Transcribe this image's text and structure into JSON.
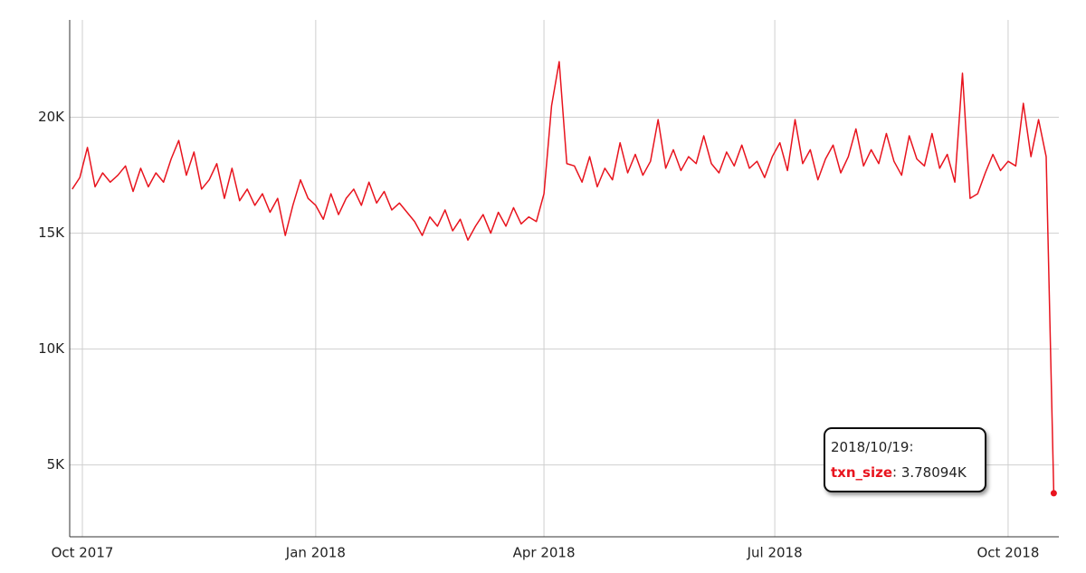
{
  "chart_data": {
    "type": "line",
    "x": [
      "2017/09/27",
      "2017/09/30",
      "2017/10/03",
      "2017/10/06",
      "2017/10/09",
      "2017/10/12",
      "2017/10/15",
      "2017/10/18",
      "2017/10/21",
      "2017/10/24",
      "2017/10/27",
      "2017/10/30",
      "2017/11/02",
      "2017/11/05",
      "2017/11/08",
      "2017/11/11",
      "2017/11/14",
      "2017/11/17",
      "2017/11/20",
      "2017/11/23",
      "2017/11/26",
      "2017/11/29",
      "2017/12/02",
      "2017/12/05",
      "2017/12/08",
      "2017/12/11",
      "2017/12/14",
      "2017/12/17",
      "2017/12/20",
      "2017/12/23",
      "2017/12/26",
      "2017/12/29",
      "2018/01/01",
      "2018/01/04",
      "2018/01/07",
      "2018/01/10",
      "2018/01/13",
      "2018/01/16",
      "2018/01/19",
      "2018/01/22",
      "2018/01/25",
      "2018/01/28",
      "2018/01/31",
      "2018/02/03",
      "2018/02/06",
      "2018/02/09",
      "2018/02/12",
      "2018/02/15",
      "2018/02/18",
      "2018/02/21",
      "2018/02/24",
      "2018/02/27",
      "2018/03/02",
      "2018/03/05",
      "2018/03/08",
      "2018/03/11",
      "2018/03/14",
      "2018/03/17",
      "2018/03/20",
      "2018/03/23",
      "2018/03/26",
      "2018/03/29",
      "2018/04/01",
      "2018/04/04",
      "2018/04/07",
      "2018/04/10",
      "2018/04/13",
      "2018/04/16",
      "2018/04/19",
      "2018/04/22",
      "2018/04/25",
      "2018/04/28",
      "2018/05/01",
      "2018/05/04",
      "2018/05/07",
      "2018/05/10",
      "2018/05/13",
      "2018/05/16",
      "2018/05/19",
      "2018/05/22",
      "2018/05/25",
      "2018/05/28",
      "2018/05/31",
      "2018/06/03",
      "2018/06/06",
      "2018/06/09",
      "2018/06/12",
      "2018/06/15",
      "2018/06/18",
      "2018/06/21",
      "2018/06/24",
      "2018/06/27",
      "2018/06/30",
      "2018/07/03",
      "2018/07/06",
      "2018/07/09",
      "2018/07/12",
      "2018/07/15",
      "2018/07/18",
      "2018/07/21",
      "2018/07/24",
      "2018/07/27",
      "2018/07/30",
      "2018/08/02",
      "2018/08/05",
      "2018/08/08",
      "2018/08/11",
      "2018/08/14",
      "2018/08/17",
      "2018/08/20",
      "2018/08/23",
      "2018/08/26",
      "2018/08/29",
      "2018/09/01",
      "2018/09/04",
      "2018/09/07",
      "2018/09/10",
      "2018/09/13",
      "2018/09/16",
      "2018/09/19",
      "2018/09/22",
      "2018/09/25",
      "2018/09/28",
      "2018/10/01",
      "2018/10/04",
      "2018/10/07",
      "2018/10/10",
      "2018/10/13",
      "2018/10/16",
      "2018/10/19"
    ],
    "series": [
      {
        "name": "txn_size",
        "color": "#e8141e",
        "values": [
          16900,
          17400,
          18700,
          17000,
          17600,
          17200,
          17500,
          17900,
          16800,
          17800,
          17000,
          17600,
          17200,
          18200,
          19000,
          17500,
          18500,
          16900,
          17300,
          18000,
          16500,
          17800,
          16400,
          16900,
          16200,
          16700,
          15900,
          16500,
          14900,
          16200,
          17300,
          16500,
          16200,
          15600,
          16700,
          15800,
          16500,
          16900,
          16200,
          17200,
          16300,
          16800,
          16000,
          16300,
          15900,
          15500,
          14900,
          15700,
          15300,
          16000,
          15100,
          15600,
          14700,
          15300,
          15800,
          15000,
          15900,
          15300,
          16100,
          15400,
          15700,
          15500,
          16700,
          20500,
          22400,
          18000,
          17900,
          17200,
          18300,
          17000,
          17800,
          17300,
          18900,
          17600,
          18400,
          17500,
          18100,
          19900,
          17800,
          18600,
          17700,
          18300,
          18000,
          19200,
          18000,
          17600,
          18500,
          17900,
          18800,
          17800,
          18100,
          17400,
          18300,
          18900,
          17700,
          19900,
          18000,
          18600,
          17300,
          18200,
          18800,
          17600,
          18300,
          19500,
          17900,
          18600,
          18000,
          19300,
          18100,
          17500,
          19200,
          18200,
          17900,
          19300,
          17800,
          18400,
          17200,
          21900,
          16500,
          16700,
          17600,
          18400,
          17700,
          18100,
          17900,
          20600,
          18300,
          19900,
          18300,
          3780.94
        ]
      }
    ],
    "xlim": [
      "2017/09/26",
      "2018/10/21"
    ],
    "xticks": [
      {
        "value": "2017/10/01",
        "label": "Oct 2017"
      },
      {
        "value": "2018/01/01",
        "label": "Jan 2018"
      },
      {
        "value": "2018/04/01",
        "label": "Apr 2018"
      },
      {
        "value": "2018/07/01",
        "label": "Jul 2018"
      },
      {
        "value": "2018/10/01",
        "label": "Oct 2018"
      }
    ],
    "ylim": [
      1900,
      24200
    ],
    "yticks": [
      {
        "value": 5000,
        "label": "5K"
      },
      {
        "value": 10000,
        "label": "10K"
      },
      {
        "value": 15000,
        "label": "15K"
      },
      {
        "value": 20000,
        "label": "20K"
      }
    ],
    "grid": true,
    "tooltip": {
      "value_label": "3.78094K"
    }
  }
}
